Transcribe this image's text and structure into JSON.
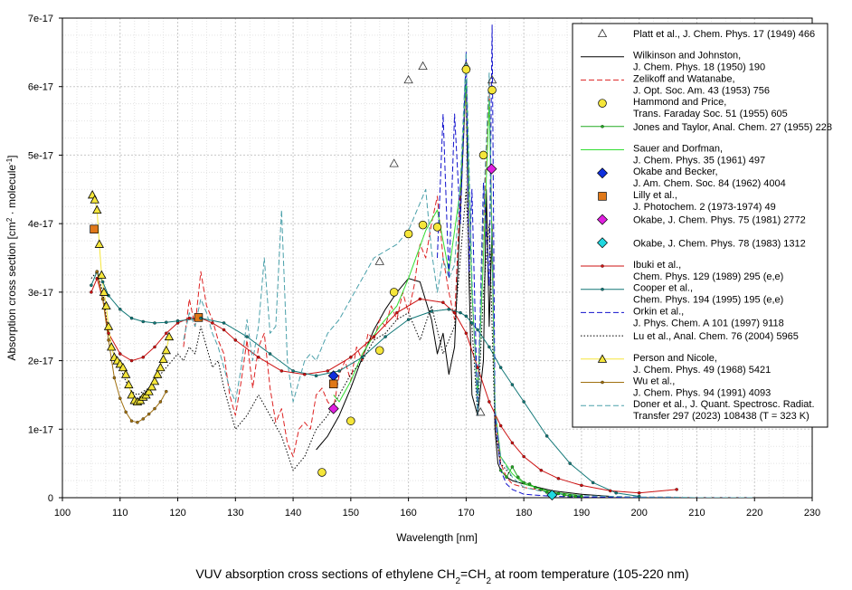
{
  "chart_data": {
    "type": "line",
    "title": "",
    "caption_parts": {
      "pre": "VUV absorption cross sections of ethylene CH",
      "sub1": "2",
      "mid": "=CH",
      "sub2": "2",
      "post": " at room temperature (105-220 nm)"
    },
    "xlabel": "Wavelength [nm]",
    "ylabel_parts": {
      "pre": "Absorption cross section [cm",
      "sup1": "2",
      "mid": " · molecule",
      "sup2": "-1",
      "post": "]"
    },
    "xlim": [
      100,
      230
    ],
    "ylim": [
      0,
      7e-17
    ],
    "x_ticks": [
      "100",
      "110",
      "120",
      "130",
      "140",
      "150",
      "160",
      "170",
      "180",
      "190",
      "200",
      "210",
      "220",
      "230"
    ],
    "y_ticks": [
      "0",
      "1e-17",
      "2e-17",
      "3e-17",
      "4e-17",
      "5e-17",
      "6e-17",
      "7e-17"
    ],
    "grid": true,
    "legend_position": "top-right",
    "series": [
      {
        "name": "Platt et al., J. Chem. Phys. 17 (1949) 466",
        "color": "#555555",
        "marker": "triangle",
        "line": "none",
        "x": [
          155,
          157.5,
          160,
          162.5,
          170,
          172.5,
          174.5
        ],
        "y": [
          3.45e-17,
          4.88e-17,
          6.1e-17,
          6.3e-17,
          6.3e-17,
          1.25e-17,
          6.1e-17
        ]
      },
      {
        "name": "Wilkinson and Johnston, J. Chem. Phys. 18 (1950) 190",
        "color": "#000000",
        "marker": "none",
        "line": "solid",
        "x": [
          144,
          146,
          148,
          150,
          152,
          154,
          156,
          158,
          160,
          162,
          164,
          165,
          166,
          167,
          168,
          169,
          170,
          170.5,
          171,
          172,
          173,
          173.5,
          174,
          174.5,
          175,
          175.5,
          176,
          177,
          178,
          180,
          185,
          190,
          195
        ],
        "y": [
          7e-18,
          9e-18,
          1.2e-17,
          1.6e-17,
          2.05e-17,
          2.45e-17,
          2.75e-17,
          3e-17,
          3.2e-17,
          3.15e-17,
          2.6e-17,
          2.1e-17,
          2.4e-17,
          1.8e-17,
          2.2e-17,
          4.2e-17,
          6.1e-17,
          3.2e-17,
          1.5e-17,
          1.2e-17,
          2e-17,
          4.5e-17,
          2.5e-17,
          4e-17,
          1e-17,
          5e-18,
          4e-18,
          3e-18,
          2.5e-18,
          2e-18,
          1e-18,
          5e-19,
          2e-19
        ]
      },
      {
        "name": "Zelikoff and Watanabe, J. Opt. Soc. Am. 43 (1953) 756",
        "color": "#dd2222",
        "marker": "none",
        "line": "dashed",
        "x": [
          121,
          122,
          123,
          124,
          125,
          126,
          127,
          128,
          129,
          130,
          131,
          132,
          133,
          134,
          135,
          136,
          137,
          138,
          139,
          140,
          141,
          142,
          143,
          144,
          145,
          146,
          147,
          148,
          149,
          150,
          151,
          152,
          153,
          154,
          155,
          156,
          157,
          158,
          159,
          160,
          161,
          162,
          163,
          164,
          165,
          166,
          167,
          168,
          169,
          170,
          171,
          172,
          173,
          174,
          175,
          176,
          177,
          178,
          180,
          185,
          190
        ],
        "y": [
          2.2e-17,
          2.9e-17,
          2.5e-17,
          3.3e-17,
          2.8e-17,
          2.6e-17,
          2.3e-17,
          2.1e-17,
          1.5e-17,
          1.2e-17,
          1.7e-17,
          2.3e-17,
          1.6e-17,
          2.2e-17,
          2.4e-17,
          1.6e-17,
          1.1e-17,
          1.3e-17,
          8e-18,
          6e-18,
          1e-17,
          1.1e-17,
          1e-17,
          1.5e-17,
          1.6e-17,
          1.4e-17,
          1.3e-17,
          1.8e-17,
          2e-17,
          1.7e-17,
          2.2e-17,
          2e-17,
          2.4e-17,
          2.3e-17,
          2.6e-17,
          2.5e-17,
          2.8e-17,
          2.6e-17,
          3e-17,
          2.7e-17,
          3.1e-17,
          3.7e-17,
          3.5e-17,
          4e-17,
          4.4e-17,
          3.5e-17,
          3e-17,
          2.6e-17,
          4.5e-17,
          6e-17,
          3e-17,
          1.5e-17,
          4e-17,
          6.1e-17,
          1.2e-17,
          5e-18,
          3e-18,
          2e-18,
          1.5e-18,
          8e-19,
          3e-19
        ]
      },
      {
        "name": "Hammond and Price, Trans. Faraday Soc. 51 (1955) 605",
        "color": "#f5e63a",
        "marker": "circle",
        "line": "none",
        "x": [
          145,
          150,
          155,
          157.5,
          160,
          162.5,
          165,
          170,
          173,
          174.5
        ],
        "y": [
          3.7e-18,
          1.12e-17,
          2.15e-17,
          3e-17,
          3.85e-17,
          3.98e-17,
          3.95e-17,
          6.25e-17,
          5e-17,
          5.95e-17
        ]
      },
      {
        "name": "Jones and Taylor, Anal. Chem. 27 (1955) 228",
        "color": "#22aa22",
        "marker": "small-dot",
        "line": "solid",
        "x": [
          176,
          177,
          178,
          179,
          180,
          181,
          182,
          183,
          184,
          185,
          186,
          187,
          188,
          189,
          190
        ],
        "y": [
          4e-18,
          3e-18,
          4.5e-18,
          3e-18,
          2.2e-18,
          2e-18,
          1.5e-18,
          1.2e-18,
          8e-19,
          5e-19,
          6e-19,
          4e-19,
          3e-19,
          2e-19,
          2e-19
        ]
      },
      {
        "name": "Sauer and Dorfman, J. Chem. Phys. 35 (1961) 497",
        "color": "#33dd33",
        "marker": "none",
        "line": "solid",
        "x": [
          147,
          148,
          150,
          152,
          155,
          158,
          160,
          163,
          165,
          167,
          169,
          170,
          171,
          172,
          173,
          174,
          175,
          176,
          178,
          180,
          185,
          190
        ],
        "y": [
          1.5e-17,
          1.4e-17,
          1.7e-17,
          2.1e-17,
          2.5e-17,
          2.8e-17,
          3.2e-17,
          3.9e-17,
          4.2e-17,
          3.3e-17,
          4.5e-17,
          6.1e-17,
          3e-17,
          1.5e-17,
          3.5e-17,
          5.8e-17,
          1.3e-17,
          6e-18,
          3.5e-18,
          2e-18,
          8e-19,
          3e-19
        ]
      },
      {
        "name": "Okabe and Becker, J. Am. Chem. Soc. 84 (1962) 4004",
        "color": "#1030dd",
        "marker": "diamond",
        "line": "none",
        "x": [
          147
        ],
        "y": [
          1.78e-17
        ]
      },
      {
        "name": "Lilly et al., J. Photochem. 2 (1973-1974) 49",
        "color": "#e07818",
        "marker": "square",
        "line": "none",
        "x": [
          105.5,
          123.6,
          147
        ],
        "y": [
          3.92e-17,
          2.63e-17,
          1.66e-17
        ]
      },
      {
        "name": "Okabe, J. Chem. Phys. 75 (1981) 2772",
        "color": "#e020e0",
        "marker": "diamond",
        "line": "none",
        "x": [
          147,
          174.4
        ],
        "y": [
          1.3e-17,
          4.8e-17
        ]
      },
      {
        "name": "Okabe, J. Chem. Phys. 78 (1983) 1312",
        "color": "#20d8e0",
        "marker": "diamond",
        "line": "none",
        "x": [
          184.9
        ],
        "y": [
          4e-19
        ]
      },
      {
        "name": "Ibuki et al., Chem. Phys. 129 (1989) 295 (e,e)",
        "color": "#cc1111",
        "marker": "small-dot",
        "line": "solid",
        "x": [
          105,
          106,
          107,
          108,
          110,
          112,
          114,
          116,
          118,
          120,
          122,
          124,
          126,
          128,
          130,
          134,
          138,
          142,
          146,
          150,
          154,
          158,
          162,
          166,
          168,
          170,
          172,
          174,
          176,
          178,
          180,
          183,
          186,
          190,
          195,
          200,
          206.5
        ],
        "y": [
          3e-17,
          3.2e-17,
          2.9e-17,
          2.4e-17,
          2.1e-17,
          2e-17,
          2.05e-17,
          2.2e-17,
          2.4e-17,
          2.55e-17,
          2.62e-17,
          2.62e-17,
          2.55e-17,
          2.45e-17,
          2.3e-17,
          2.05e-17,
          1.85e-17,
          1.8e-17,
          1.85e-17,
          2.05e-17,
          2.35e-17,
          2.7e-17,
          2.9e-17,
          2.85e-17,
          2.7e-17,
          2.4e-17,
          1.9e-17,
          1.4e-17,
          1.05e-17,
          8e-18,
          6e-18,
          4e-18,
          2.8e-18,
          1.8e-18,
          1e-18,
          7e-19,
          1.2e-18
        ]
      },
      {
        "name": "Cooper et al., Chem. Phys. 194 (1995) 195 (e,e)",
        "color": "#117777",
        "marker": "small-dot",
        "line": "solid",
        "x": [
          105,
          106,
          107,
          108,
          110,
          112,
          114,
          116,
          118,
          120,
          124,
          128,
          132,
          136,
          140,
          144,
          148,
          152,
          156,
          160,
          164,
          167,
          169,
          170,
          171,
          172,
          174,
          176,
          178,
          180,
          184,
          188,
          192,
          196,
          200
        ],
        "y": [
          3.1e-17,
          3.3e-17,
          3.15e-17,
          2.95e-17,
          2.75e-17,
          2.62e-17,
          2.57e-17,
          2.55e-17,
          2.56e-17,
          2.58e-17,
          2.62e-17,
          2.55e-17,
          2.35e-17,
          2.1e-17,
          1.85e-17,
          1.78e-17,
          1.85e-17,
          2.05e-17,
          2.35e-17,
          2.6e-17,
          2.72e-17,
          2.75e-17,
          2.7e-17,
          2.65e-17,
          2.55e-17,
          2.45e-17,
          2.2e-17,
          1.9e-17,
          1.65e-17,
          1.4e-17,
          9e-18,
          5e-18,
          2.2e-18,
          7e-19,
          2e-19
        ]
      },
      {
        "name": "Orkin et al., J. Phys. Chem. A 101 (1997) 9118",
        "color": "#1010cc",
        "marker": "none",
        "line": "dashed",
        "x": [
          165,
          166,
          167,
          168,
          169,
          170,
          170.5,
          171,
          172,
          173,
          174,
          174.5,
          175,
          176,
          177,
          178,
          180,
          185,
          190,
          195,
          200,
          205,
          210,
          215,
          220
        ],
        "y": [
          3.5e-17,
          5.6e-17,
          3.2e-17,
          5.6e-17,
          4e-17,
          6.5e-17,
          3.3e-17,
          4.5e-17,
          1.2e-17,
          4.6e-17,
          3.1e-17,
          6.9e-17,
          1.2e-17,
          4e-18,
          2e-18,
          1.2e-18,
          5e-19,
          2e-19,
          1e-19,
          1e-19,
          0.0,
          0.0,
          0.0,
          0.0,
          0.0
        ]
      },
      {
        "name": "Lu et al., Anal. Chem. 76 (2004) 5965",
        "color": "#000000",
        "marker": "none",
        "line": "dotted",
        "x": [
          105,
          106,
          107,
          108,
          109,
          110,
          111,
          112,
          113,
          114,
          115,
          116,
          117,
          118,
          119,
          120,
          121,
          122,
          123,
          124,
          125,
          126,
          127,
          128,
          130,
          132,
          134,
          136,
          138,
          140,
          142,
          144,
          146,
          148,
          150,
          152,
          154,
          156,
          158,
          160,
          162,
          164,
          166,
          168,
          170,
          171,
          172,
          173,
          174,
          175,
          176,
          178
        ],
        "y": [
          3.2e-17,
          3.3e-17,
          3e-17,
          2.4e-17,
          2.1e-17,
          1.9e-17,
          1.7e-17,
          1.55e-17,
          1.5e-17,
          1.55e-17,
          1.6e-17,
          1.7e-17,
          1.8e-17,
          1.9e-17,
          2e-17,
          2.1e-17,
          2e-17,
          2.2e-17,
          2.1e-17,
          2.5e-17,
          2.2e-17,
          1.9e-17,
          2e-17,
          1.6e-17,
          1e-17,
          1.2e-17,
          1.5e-17,
          1.2e-17,
          9e-18,
          4e-18,
          6e-18,
          1e-17,
          1.2e-17,
          1.5e-17,
          1.8e-17,
          2e-17,
          2.3e-17,
          2.4e-17,
          2.6e-17,
          2.7e-17,
          2.3e-17,
          2.8e-17,
          2.1e-17,
          2.5e-17,
          4.5e-17,
          2.5e-17,
          1.2e-17,
          3e-17,
          4e-17,
          1e-17,
          5e-18,
          3e-18
        ]
      },
      {
        "name": "Person and Nicole, J. Chem. Phys. 49 (1968) 5421",
        "color": "#f5e63a",
        "marker": "triangle",
        "line": "solid",
        "x": [
          105.2,
          105.6,
          106,
          106.4,
          106.8,
          107.2,
          107.6,
          108,
          108.5,
          109,
          109.5,
          110,
          110.5,
          111,
          111.5,
          112,
          112.5,
          113,
          113.5,
          114,
          114.5,
          115,
          115.5,
          116,
          116.5,
          117,
          117.5,
          118,
          118.5
        ],
        "y": [
          4.42e-17,
          4.35e-17,
          4.2e-17,
          3.7e-17,
          3.25e-17,
          3e-17,
          2.8e-17,
          2.5e-17,
          2.2e-17,
          2.05e-17,
          2e-17,
          1.95e-17,
          1.9e-17,
          1.8e-17,
          1.65e-17,
          1.5e-17,
          1.42e-17,
          1.4e-17,
          1.42e-17,
          1.47e-17,
          1.5e-17,
          1.55e-17,
          1.62e-17,
          1.7e-17,
          1.8e-17,
          1.9e-17,
          2.02e-17,
          2.15e-17,
          2.35e-17
        ]
      },
      {
        "name": "Wu et al., J. Chem. Phys. 94 (1991) 4093",
        "color": "#a07010",
        "marker": "small-dot",
        "line": "solid",
        "x": [
          106,
          107,
          108,
          109,
          110,
          111,
          112,
          113,
          114,
          115,
          116,
          117,
          118
        ],
        "y": [
          3.3e-17,
          2.9e-17,
          2.3e-17,
          1.75e-17,
          1.45e-17,
          1.25e-17,
          1.12e-17,
          1.1e-17,
          1.15e-17,
          1.22e-17,
          1.3e-17,
          1.4e-17,
          1.55e-17
        ]
      },
      {
        "name": "Doner et al., J. Quant. Spectrosc. Radiat. Transfer 297 (2023) 108438 (T = 323 K)",
        "color": "#4aa0aa",
        "marker": "none",
        "line": "dashed",
        "x": [
          121,
          122,
          123,
          124,
          125,
          126,
          127,
          128,
          129,
          130,
          131,
          132,
          133,
          134,
          135,
          136,
          137,
          138,
          139,
          140,
          141,
          142,
          143,
          144,
          145,
          146,
          148,
          150,
          152,
          154,
          156,
          158,
          160,
          162,
          163,
          164,
          165,
          166,
          167,
          168,
          169,
          170,
          171,
          172,
          173,
          174,
          175,
          176,
          178,
          180,
          185,
          190,
          195,
          200,
          205,
          210,
          215,
          220
        ],
        "y": [
          2.3e-17,
          2.7e-17,
          2.5e-17,
          2.9e-17,
          2.7e-17,
          2.4e-17,
          2.2e-17,
          1.9e-17,
          1.6e-17,
          1.4e-17,
          1.9e-17,
          2.6e-17,
          2e-17,
          2.5e-17,
          3.5e-17,
          2.4e-17,
          2.5e-17,
          4.2e-17,
          2e-17,
          1.4e-17,
          1.7e-17,
          2e-17,
          2.1e-17,
          2e-17,
          2.2e-17,
          2.4e-17,
          2.6e-17,
          2.9e-17,
          3.2e-17,
          3.5e-17,
          3.6e-17,
          3.7e-17,
          3.9e-17,
          4.3e-17,
          4.5e-17,
          3.6e-17,
          3e-17,
          3.5e-17,
          3.2e-17,
          3.4e-17,
          4.6e-17,
          6.5e-17,
          3.2e-17,
          1.2e-17,
          4.2e-17,
          6.2e-17,
          1.3e-17,
          6e-18,
          3e-18,
          1.5e-18,
          6e-19,
          3e-19,
          2e-19,
          1e-19,
          1e-19,
          0.0,
          0.0,
          0.0
        ]
      }
    ],
    "legend_entries": [
      {
        "l1": "Platt et al., J. Chem. Phys. 17 (1949) 466",
        "l2": ""
      },
      {
        "l1": "Wilkinson and Johnston,",
        "l2": "J. Chem. Phys. 18 (1950) 190"
      },
      {
        "l1": "Zelikoff and Watanabe,",
        "l2": "J. Opt. Soc. Am. 43 (1953) 756"
      },
      {
        "l1": "Hammond and Price,",
        "l2": "Trans. Faraday Soc. 51 (1955) 605"
      },
      {
        "l1": "Jones and Taylor, Anal. Chem. 27 (1955) 228",
        "l2": ""
      },
      {
        "l1": "Sauer and Dorfman,",
        "l2": "J. Chem. Phys. 35 (1961) 497"
      },
      {
        "l1": "Okabe and Becker,",
        "l2": "J. Am. Chem. Soc. 84 (1962) 4004"
      },
      {
        "l1": "Lilly et al.,",
        "l2": "J. Photochem. 2 (1973-1974) 49"
      },
      {
        "l1": "Okabe, J. Chem. Phys. 75 (1981) 2772",
        "l2": ""
      },
      {
        "l1": "Okabe, J. Chem. Phys. 78 (1983) 1312",
        "l2": ""
      },
      {
        "l1": "Ibuki et al.,",
        "l2": "Chem. Phys. 129 (1989) 295 (e,e)"
      },
      {
        "l1": "Cooper et al.,",
        "l2": "Chem. Phys. 194 (1995) 195 (e,e)"
      },
      {
        "l1": "Orkin et al.,",
        "l2": "J. Phys. Chem. A 101 (1997) 9118"
      },
      {
        "l1": "Lu et al., Anal. Chem. 76 (2004) 5965",
        "l2": ""
      },
      {
        "l1": "Person and Nicole,",
        "l2": "J. Chem. Phys. 49 (1968) 5421"
      },
      {
        "l1": "Wu et al.,",
        "l2": "J. Chem. Phys. 94 (1991) 4093"
      },
      {
        "l1": "Doner et al., J. Quant. Spectrosc. Radiat.",
        "l2": "Transfer 297 (2023) 108438 (T = 323 K)"
      }
    ]
  }
}
